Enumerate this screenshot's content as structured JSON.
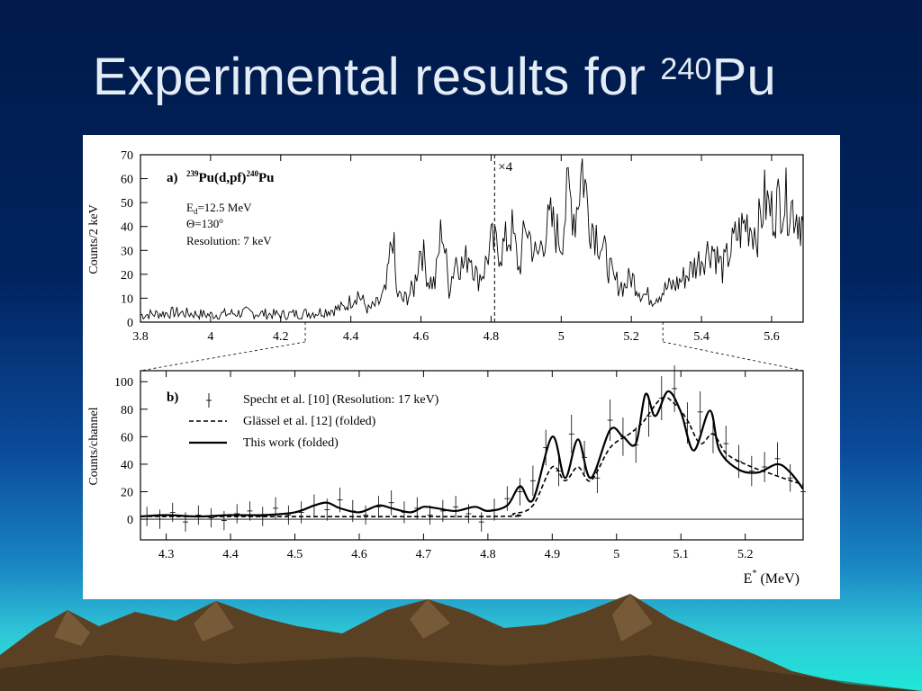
{
  "slide": {
    "title_main": "Experimental results for ",
    "title_sup": "240",
    "title_element": "Pu"
  },
  "colors": {
    "title_text": "#e4ecf6",
    "figure_background": "#ffffff",
    "plot_ink": "#000000"
  },
  "chart_data": [
    {
      "type": "line",
      "panel_label": "a)",
      "reaction_sup1": "239",
      "reaction_mid": "Pu(d,pf)",
      "reaction_sup2": "240",
      "reaction_end": "Pu",
      "params": [
        "E",
        "d",
        "=12.5 MeV",
        "Θ=130",
        "o",
        "Resolution: 7 keV"
      ],
      "ylabel": "Counts/2 keV",
      "xlim": [
        3.8,
        5.69
      ],
      "ylim": [
        0,
        70
      ],
      "xticks": [
        "3.8",
        "4",
        "4.2",
        "4.4",
        "4.6",
        "4.8",
        "5",
        "5.2",
        "5.4",
        "5.6"
      ],
      "yticks": [
        "0",
        "10",
        "20",
        "30",
        "40",
        "50",
        "60",
        "70"
      ],
      "scale_marker": {
        "label": "×4",
        "x": 4.81
      },
      "zoom_region": [
        4.27,
        5.29
      ],
      "grid": false,
      "series": [
        {
          "x": [
            3.8,
            3.9,
            4.0,
            4.1,
            4.2,
            4.3,
            4.38,
            4.42,
            4.45,
            4.48,
            4.5,
            4.52,
            4.53,
            4.55,
            4.58,
            4.6,
            4.62,
            4.64,
            4.66,
            4.68,
            4.7,
            4.72,
            4.74,
            4.76,
            4.78,
            4.8,
            4.83,
            4.86,
            4.88,
            4.9,
            4.93,
            4.95,
            4.97,
            5.0,
            5.02,
            5.04,
            5.06,
            5.08,
            5.1,
            5.12,
            5.15,
            5.18,
            5.2,
            5.23,
            5.26,
            5.3,
            5.33,
            5.36,
            5.4,
            5.43,
            5.46,
            5.5,
            5.53,
            5.56,
            5.58,
            5.6,
            5.63,
            5.66,
            5.69
          ],
          "y": [
            3,
            4,
            3,
            4,
            3,
            4,
            6,
            12,
            5,
            8,
            13,
            38,
            12,
            9,
            14,
            33,
            18,
            16,
            41,
            14,
            27,
            23,
            30,
            18,
            22,
            33,
            30,
            38,
            22,
            41,
            26,
            36,
            42,
            34,
            55,
            44,
            66,
            44,
            38,
            30,
            17,
            15,
            19,
            12,
            10,
            14,
            16,
            20,
            27,
            32,
            22,
            36,
            42,
            38,
            51,
            46,
            52,
            48,
            42
          ]
        }
      ]
    },
    {
      "type": "line",
      "panel_label": "b)",
      "ylabel": "Counts/channel",
      "xlabel_main": "E",
      "xlabel_sup": "*",
      "xlabel_unit": " (MeV)",
      "xlim": [
        4.26,
        5.29
      ],
      "ylim": [
        -15,
        108
      ],
      "xticks": [
        "4.3",
        "4.4",
        "4.5",
        "4.6",
        "4.7",
        "4.8",
        "4.9",
        "5",
        "5.1",
        "5.2"
      ],
      "yticks": [
        "0",
        "20",
        "40",
        "60",
        "80",
        "100"
      ],
      "grid": false,
      "legend_position": "top-left",
      "series": [
        {
          "name": "Specht et al. [10]  (Resolution: 17 keV)",
          "style": "points-with-errorbars",
          "x": [
            4.27,
            4.29,
            4.31,
            4.33,
            4.35,
            4.37,
            4.39,
            4.41,
            4.43,
            4.45,
            4.47,
            4.49,
            4.51,
            4.53,
            4.55,
            4.57,
            4.59,
            4.61,
            4.63,
            4.65,
            4.67,
            4.69,
            4.71,
            4.73,
            4.75,
            4.77,
            4.79,
            4.81,
            4.83,
            4.85,
            4.87,
            4.89,
            4.91,
            4.93,
            4.95,
            4.97,
            4.99,
            5.01,
            5.03,
            5.05,
            5.07,
            5.09,
            5.11,
            5.13,
            5.15,
            5.17,
            5.19,
            5.21,
            5.23,
            5.25,
            5.27,
            5.29
          ],
          "y": [
            2,
            0,
            5,
            -2,
            3,
            1,
            -1,
            4,
            6,
            2,
            8,
            3,
            5,
            10,
            7,
            14,
            6,
            3,
            9,
            12,
            5,
            8,
            3,
            6,
            9,
            4,
            -2,
            7,
            15,
            20,
            28,
            52,
            35,
            62,
            45,
            30,
            72,
            60,
            54,
            75,
            88,
            95,
            70,
            78,
            62,
            55,
            42,
            35,
            38,
            44,
            30,
            20
          ],
          "yerr": [
            7,
            7,
            7,
            7,
            7,
            7,
            7,
            7,
            7,
            7,
            8,
            7,
            8,
            8,
            8,
            9,
            8,
            7,
            8,
            9,
            8,
            8,
            7,
            8,
            8,
            7,
            7,
            8,
            9,
            10,
            11,
            13,
            11,
            14,
            12,
            11,
            15,
            14,
            13,
            15,
            16,
            17,
            15,
            15,
            14,
            13,
            12,
            11,
            11,
            12,
            10,
            9
          ]
        },
        {
          "name": "Glässel et al. [12]  (folded)",
          "style": "dashed",
          "x": [
            4.26,
            4.8,
            4.84,
            4.87,
            4.9,
            4.92,
            4.94,
            4.96,
            4.99,
            5.02,
            5.04,
            5.07,
            5.09,
            5.11,
            5.13,
            5.15,
            5.17,
            5.2,
            5.24,
            5.29
          ],
          "y": [
            2,
            2,
            4,
            10,
            38,
            28,
            38,
            28,
            52,
            62,
            70,
            88,
            84,
            72,
            55,
            62,
            48,
            40,
            33,
            25
          ]
        },
        {
          "name": "This work  (folded)",
          "style": "solid",
          "x": [
            4.26,
            4.3,
            4.35,
            4.4,
            4.45,
            4.5,
            4.53,
            4.55,
            4.57,
            4.6,
            4.63,
            4.65,
            4.68,
            4.7,
            4.72,
            4.75,
            4.78,
            4.8,
            4.83,
            4.85,
            4.87,
            4.9,
            4.92,
            4.94,
            4.96,
            4.99,
            5.01,
            5.03,
            5.045,
            5.06,
            5.08,
            5.1,
            5.12,
            5.145,
            5.16,
            5.19,
            5.22,
            5.25,
            5.27,
            5.29
          ],
          "y": [
            2,
            3,
            2,
            3,
            3,
            5,
            10,
            12,
            8,
            5,
            10,
            8,
            5,
            9,
            8,
            6,
            9,
            6,
            10,
            24,
            14,
            60,
            30,
            58,
            30,
            65,
            60,
            55,
            91,
            75,
            93,
            78,
            50,
            79,
            50,
            36,
            34,
            40,
            34,
            22
          ]
        }
      ]
    }
  ]
}
